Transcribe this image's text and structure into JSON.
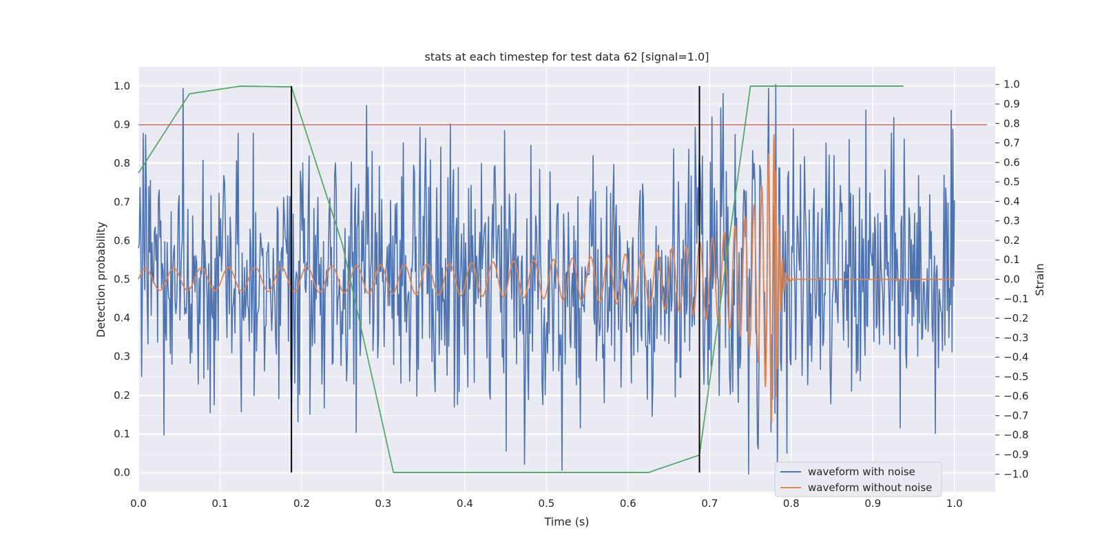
{
  "chart_data": {
    "type": "line",
    "title": "stats at each timestep for test data 62 [signal=1.0]",
    "xlabel": "Time (s)",
    "ylabel_left": "Detection probability",
    "ylabel_right": "Strain",
    "xlim": [
      0.0,
      1.05
    ],
    "ylim_left": [
      -0.05,
      1.05
    ],
    "ylim_right": [
      -1.0909,
      1.0909
    ],
    "xticks": [
      "0.0",
      "0.1",
      "0.2",
      "0.3",
      "0.4",
      "0.5",
      "0.6",
      "0.7",
      "0.8",
      "0.9",
      "1.0"
    ],
    "yticks_left": [
      "0.0",
      "0.1",
      "0.2",
      "0.3",
      "0.4",
      "0.5",
      "0.6",
      "0.7",
      "0.8",
      "0.9",
      "1.0"
    ],
    "yticks_right": [
      "−1.0",
      "−0.9",
      "−0.8",
      "−0.7",
      "−0.6",
      "−0.5",
      "−0.4",
      "−0.3",
      "−0.2",
      "−0.1",
      "0.0",
      "0.1",
      "0.2",
      "0.3",
      "0.4",
      "0.5",
      "0.6",
      "0.7",
      "0.8",
      "0.9",
      "1.0"
    ],
    "grid": true,
    "legend_position": "lower-right",
    "threshold": {
      "axis": "left",
      "y": 0.9,
      "x_range": [
        0.0,
        1.04
      ],
      "color": "#c44e52"
    },
    "vlines": {
      "x": [
        0.1875,
        0.6875
      ],
      "y_range": [
        0.0,
        1.0
      ],
      "color": "#000000"
    },
    "detection_probability": {
      "axis": "left",
      "color": "#55a868",
      "x": [
        0.0,
        0.0625,
        0.125,
        0.1875,
        0.25,
        0.3125,
        0.375,
        0.4375,
        0.5,
        0.5625,
        0.625,
        0.6875,
        0.75,
        0.8125,
        0.875,
        0.9375
      ],
      "y": [
        0.775,
        0.98,
        1.0,
        0.998,
        0.59,
        0.0,
        0.0,
        0.0,
        0.0,
        0.0,
        0.0,
        0.045,
        1.0,
        1.0,
        1.0,
        1.0
      ]
    },
    "series": [
      {
        "name": "waveform with noise",
        "axis": "right",
        "color": "#4c72b0",
        "x_range": [
          0.0,
          1.0
        ],
        "n_points": 1024,
        "noise_std": 0.32,
        "peak_samples": [
          {
            "x": 0.006,
            "y": 0.75
          },
          {
            "x": 0.031,
            "y": -0.8
          },
          {
            "x": 0.055,
            "y": 0.98
          },
          {
            "x": 0.122,
            "y": 0.75
          },
          {
            "x": 0.141,
            "y": 0.75
          },
          {
            "x": 0.325,
            "y": 0.7
          },
          {
            "x": 0.345,
            "y": 0.78
          },
          {
            "x": 0.473,
            "y": -0.95
          },
          {
            "x": 0.682,
            "y": 0.78
          },
          {
            "x": 0.714,
            "y": 0.88
          },
          {
            "x": 0.748,
            "y": -1.0
          },
          {
            "x": 0.781,
            "y": 1.0
          },
          {
            "x": 0.843,
            "y": 0.7
          },
          {
            "x": 0.938,
            "y": 0.72
          }
        ]
      },
      {
        "name": "waveform without noise",
        "axis": "right",
        "color": "#dd8452",
        "x_range": [
          0.0,
          1.0
        ],
        "merger_time": 0.781,
        "amplitude_start": 0.055,
        "amplitude_peak": 0.75,
        "cycles": 36
      }
    ]
  }
}
